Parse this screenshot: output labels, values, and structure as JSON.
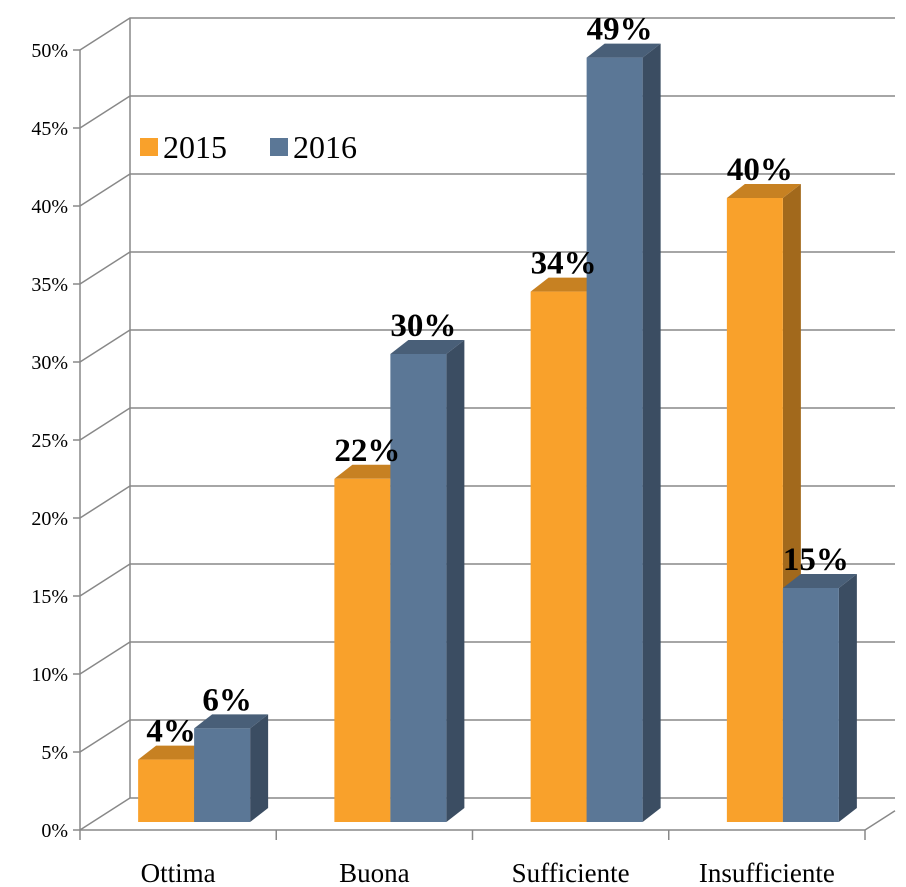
{
  "chart_data": {
    "type": "bar3d",
    "categories": [
      "Ottima",
      "Buona",
      "Sufficiente",
      "Insufficiente"
    ],
    "series": [
      {
        "name": "2015",
        "color": "#f9a12b",
        "values": [
          4,
          22,
          34,
          40
        ],
        "value_labels": [
          "4%",
          "22%",
          "34%",
          "40%"
        ]
      },
      {
        "name": "2016",
        "color": "#5b7796",
        "values": [
          6,
          30,
          49,
          15
        ],
        "value_labels": [
          "6%",
          "30%",
          "49%",
          "15%"
        ]
      }
    ],
    "ylim": [
      0,
      50
    ],
    "yticks": [
      {
        "value": 0,
        "label": "0%"
      },
      {
        "value": 5,
        "label": "5%"
      },
      {
        "value": 10,
        "label": "10%"
      },
      {
        "value": 15,
        "label": "15%"
      },
      {
        "value": 20,
        "label": "20%"
      },
      {
        "value": 25,
        "label": "25%"
      },
      {
        "value": 30,
        "label": "30%"
      },
      {
        "value": 35,
        "label": "35%"
      },
      {
        "value": 40,
        "label": "40%"
      },
      {
        "value": 45,
        "label": "45%"
      },
      {
        "value": 50,
        "label": "50%"
      }
    ],
    "grid": true,
    "legend": "top-left"
  }
}
